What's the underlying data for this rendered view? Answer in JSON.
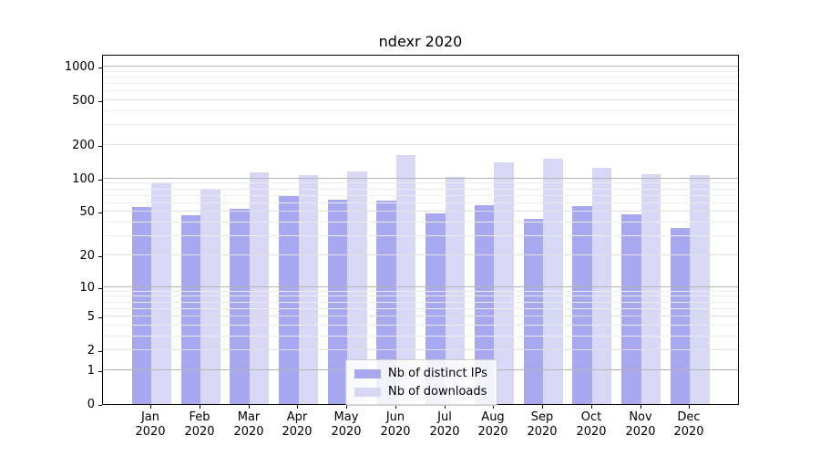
{
  "title": "ndexr 2020",
  "chart_data": {
    "type": "bar",
    "title": "ndexr 2020",
    "categories": [
      "Jan 2020",
      "Feb 2020",
      "Mar 2020",
      "Apr 2020",
      "May 2020",
      "Jun 2020",
      "Jul 2020",
      "Aug 2020",
      "Sep 2020",
      "Oct 2020",
      "Nov 2020",
      "Dec 2020"
    ],
    "month_labels": [
      "Jan",
      "Feb",
      "Mar",
      "Apr",
      "May",
      "Jun",
      "Jul",
      "Aug",
      "Sep",
      "Oct",
      "Nov",
      "Dec"
    ],
    "year_label": "2020",
    "series": [
      {
        "name": "Nb of distinct IPs",
        "color": "#a8a8f0",
        "values": [
          56,
          47,
          53,
          70,
          64,
          63,
          49,
          58,
          43,
          57,
          48,
          36
        ]
      },
      {
        "name": "Nb of downloads",
        "color": "#d8d8f6",
        "values": [
          92,
          81,
          114,
          108,
          115,
          163,
          104,
          141,
          151,
          126,
          109,
          107
        ]
      }
    ],
    "xlabel": "",
    "ylabel": "",
    "y_scale": "log1p",
    "y_ticks": [
      0,
      1,
      2,
      5,
      10,
      20,
      50,
      100,
      200,
      500,
      1000
    ],
    "ylim": [
      0,
      1300
    ],
    "grid": "both",
    "legend_position": "lower center",
    "colors": {
      "major_grid": "#b4b4b4",
      "labeled_minor_grid": "#e0e0e0",
      "minor_grid": "#ececec",
      "spine": "#000000",
      "background": "#ffffff"
    },
    "major_grid_values": [
      1,
      10,
      100,
      1000
    ],
    "labeled_minor_grid_values": [
      2,
      5,
      20,
      50,
      200,
      500
    ],
    "minor_grid_values": [
      3,
      4,
      6,
      7,
      8,
      9,
      30,
      40,
      60,
      70,
      80,
      90,
      300,
      400,
      600,
      700,
      800,
      900
    ]
  },
  "legend": {
    "items": [
      {
        "label": "Nb of distinct IPs",
        "color": "#a8a8f0"
      },
      {
        "label": "Nb of downloads",
        "color": "#d8d8f6"
      }
    ]
  }
}
